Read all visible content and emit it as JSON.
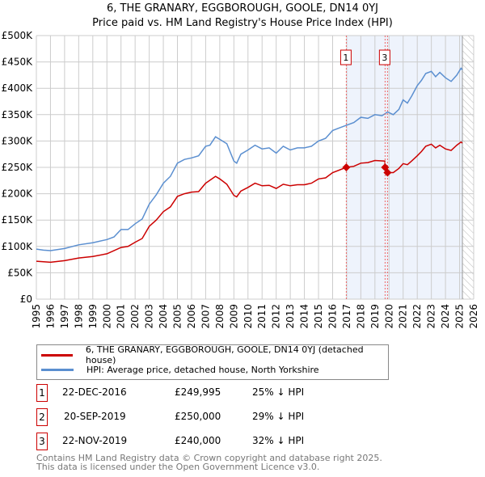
{
  "chart_data": {
    "type": "line",
    "title": "6, THE GRANARY, EGGBOROUGH, GOOLE, DN14 0YJ",
    "subtitle": "Price paid vs. HM Land Registry's House Price Index (HPI)",
    "xlim": [
      1995,
      2026
    ],
    "ylim": [
      0,
      500000
    ],
    "x_ticks": [
      "1995",
      "1996",
      "1997",
      "1998",
      "1999",
      "2000",
      "2001",
      "2002",
      "2003",
      "2004",
      "2005",
      "2006",
      "2007",
      "2008",
      "2009",
      "2010",
      "2011",
      "2012",
      "2013",
      "2014",
      "2015",
      "2016",
      "2017",
      "2018",
      "2019",
      "2020",
      "2021",
      "2022",
      "2023",
      "2024",
      "2025",
      "2026"
    ],
    "y_ticks": [
      {
        "v": 0,
        "l": "£0"
      },
      {
        "v": 50000,
        "l": "£50K"
      },
      {
        "v": 100000,
        "l": "£100K"
      },
      {
        "v": 150000,
        "l": "£150K"
      },
      {
        "v": 200000,
        "l": "£200K"
      },
      {
        "v": 250000,
        "l": "£250K"
      },
      {
        "v": 300000,
        "l": "£300K"
      },
      {
        "v": 350000,
        "l": "£350K"
      },
      {
        "v": 400000,
        "l": "£400K"
      },
      {
        "v": 450000,
        "l": "£450K"
      },
      {
        "v": 500000,
        "l": "£500K"
      }
    ],
    "grid": true,
    "shaded_range": [
      2016.97,
      2025.2
    ],
    "series": [
      {
        "name": "6, THE GRANARY, EGGBOROUGH, GOOLE, DN14 0YJ (detached house)",
        "color": "#cc0000",
        "x": [
          1995,
          1996,
          1997,
          1998,
          1999,
          2000,
          2001,
          2001.5,
          2002,
          2002.5,
          2003,
          2003.5,
          2004,
          2004.5,
          2005,
          2005.5,
          2006,
          2006.5,
          2007,
          2007.7,
          2008,
          2008.5,
          2009,
          2009.2,
          2009.5,
          2010,
          2010.5,
          2011,
          2011.5,
          2012,
          2012.5,
          2013,
          2013.5,
          2014,
          2014.5,
          2015,
          2015.5,
          2016,
          2016.97,
          2017.5,
          2018,
          2018.5,
          2019,
          2019.7,
          2019.72,
          2019.9,
          2020.3,
          2020.7,
          2021,
          2021.3,
          2021.6,
          2022,
          2022.3,
          2022.6,
          2023,
          2023.3,
          2023.6,
          2024,
          2024.4,
          2024.8,
          2025.1,
          2025.2
        ],
        "y": [
          72000,
          70000,
          73000,
          78000,
          81000,
          86000,
          98000,
          100000,
          108000,
          115000,
          138000,
          150000,
          166000,
          175000,
          195000,
          200000,
          203000,
          204000,
          220000,
          233000,
          228000,
          218000,
          197000,
          194000,
          205000,
          212000,
          220000,
          215000,
          216000,
          210000,
          218000,
          215000,
          217000,
          217000,
          220000,
          228000,
          230000,
          240000,
          249995,
          252000,
          258000,
          259000,
          263000,
          262000,
          250000,
          240000,
          240000,
          248000,
          257000,
          255000,
          262000,
          272000,
          280000,
          290000,
          294000,
          287000,
          292000,
          285000,
          282000,
          292000,
          298000,
          296000
        ]
      },
      {
        "name": "HPI: Average price, detached house, North Yorkshire",
        "color": "#5b8fd0",
        "x": [
          1995,
          1995.5,
          1996,
          1997,
          1998,
          1999,
          2000,
          2000.5,
          2001,
          2001.5,
          2002,
          2002.5,
          2003,
          2003.5,
          2004,
          2004.5,
          2005,
          2005.5,
          2006,
          2006.5,
          2007,
          2007.3,
          2007.7,
          2008,
          2008.5,
          2009,
          2009.2,
          2009.5,
          2010,
          2010.5,
          2011,
          2011.5,
          2012,
          2012.5,
          2013,
          2013.5,
          2014,
          2014.5,
          2015,
          2015.5,
          2016,
          2016.5,
          2017,
          2017.5,
          2018,
          2018.5,
          2019,
          2019.5,
          2019.9,
          2020.3,
          2020.7,
          2021,
          2021.3,
          2021.6,
          2022,
          2022.3,
          2022.6,
          2023,
          2023.3,
          2023.6,
          2024,
          2024.4,
          2024.8,
          2025.1,
          2025.2
        ],
        "y": [
          95000,
          93000,
          92000,
          96000,
          103000,
          107000,
          113000,
          118000,
          132000,
          132000,
          143000,
          152000,
          180000,
          198000,
          220000,
          233000,
          258000,
          265000,
          268000,
          272000,
          290000,
          292000,
          308000,
          303000,
          295000,
          262000,
          258000,
          275000,
          283000,
          292000,
          285000,
          287000,
          277000,
          290000,
          283000,
          287000,
          287000,
          290000,
          300000,
          305000,
          320000,
          325000,
          330000,
          335000,
          345000,
          343000,
          350000,
          348000,
          355000,
          350000,
          360000,
          378000,
          372000,
          385000,
          405000,
          415000,
          428000,
          432000,
          422000,
          430000,
          420000,
          413000,
          425000,
          438000,
          435000
        ]
      }
    ],
    "sales": [
      {
        "num": "1",
        "date": "22-DEC-2016",
        "x": 2016.97,
        "price": "£249,995",
        "price_v": 249995,
        "hpi": "25% ↓ HPI"
      },
      {
        "num": "2",
        "date": "20-SEP-2019",
        "x": 2019.72,
        "price": "£250,000",
        "price_v": 250000,
        "hpi": "29% ↓ HPI"
      },
      {
        "num": "3",
        "date": "22-NOV-2019",
        "x": 2019.89,
        "price": "£240,000",
        "price_v": 240000,
        "hpi": "32% ↓ HPI"
      }
    ]
  },
  "footer": {
    "line1": "Contains HM Land Registry data © Crown copyright and database right 2025.",
    "line2": "This data is licensed under the Open Government Licence v3.0."
  }
}
